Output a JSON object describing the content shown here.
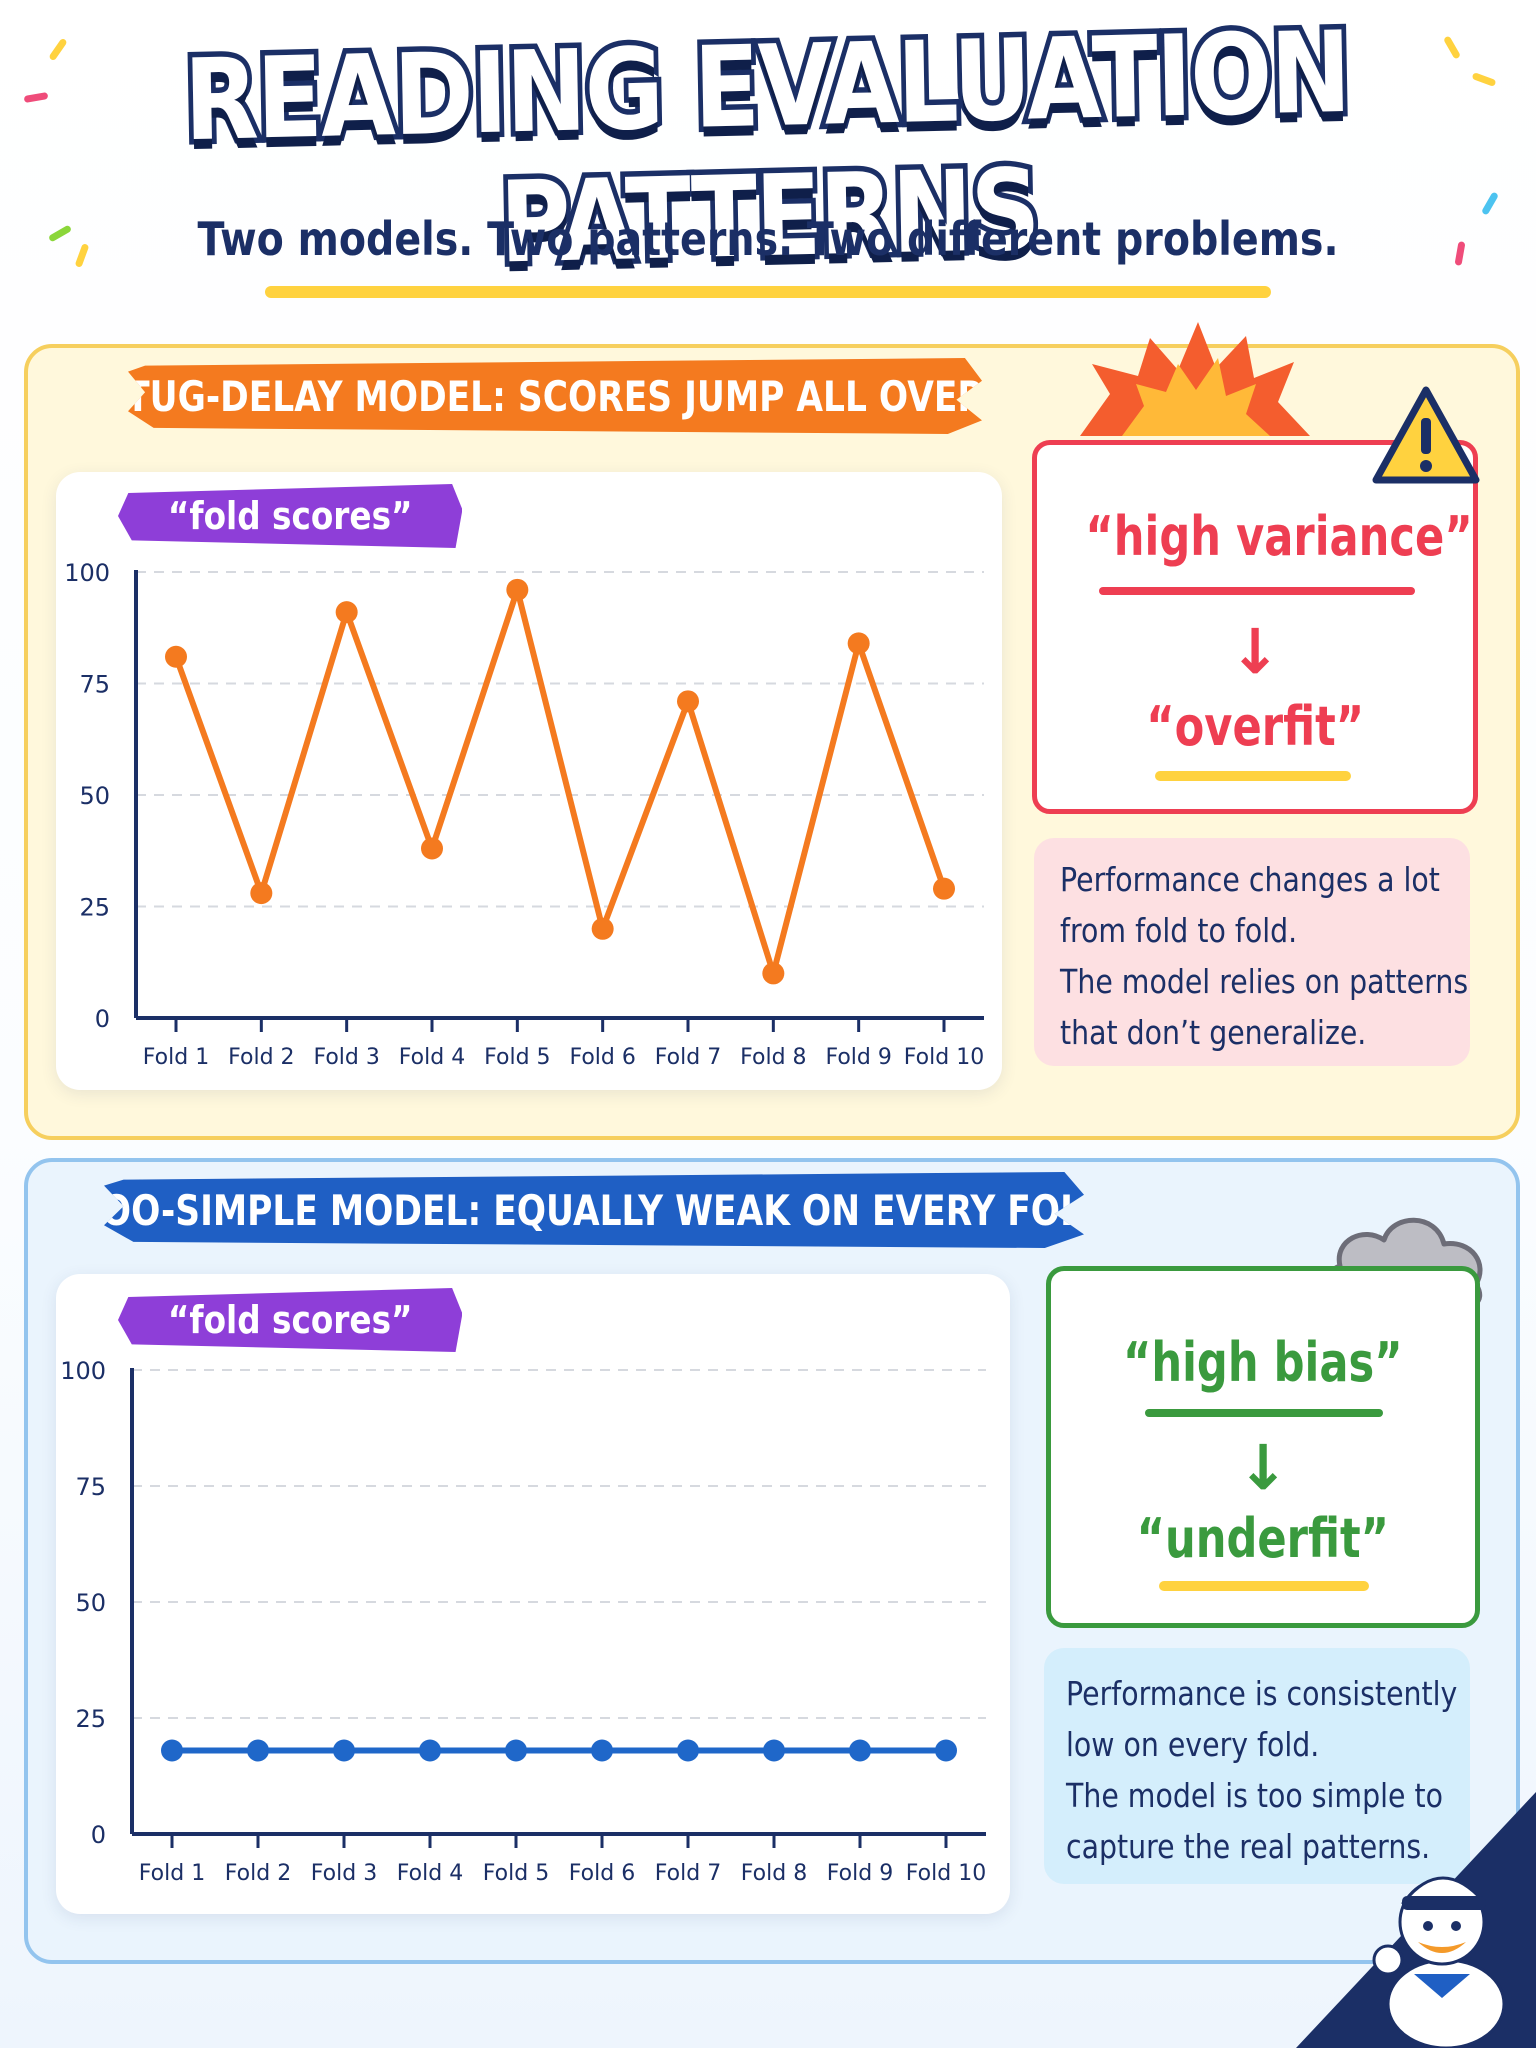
{
  "header": {
    "title": "READING EVALUATION PATTERNS",
    "subtitle": "Two models. Two patterns. Two different problems."
  },
  "top_panel": {
    "banner": "TUG-DELAY MODEL: SCORES JUMP ALL OVER",
    "chip": "“fold scores”",
    "label_top": "“high variance”",
    "label_bottom": "“overfit”",
    "arrow": "↓",
    "description": [
      "Performance changes a lot",
      "from fold to fold.",
      "The model relies on patterns",
      "that don’t generalize."
    ]
  },
  "bottom_panel": {
    "banner": "TOO-SIMPLE MODEL: EQUALLY WEAK ON EVERY FOLD",
    "chip": "“fold scores”",
    "label_top": "“high bias”",
    "label_bottom": "“underfit”",
    "arrow": "↓",
    "description": [
      "Performance is consistently",
      "low on every fold.",
      "The model is too simple to",
      "capture the real patterns."
    ]
  },
  "icons": [
    "burst-icon",
    "warning-icon",
    "cloud-icon",
    "sailor-duck-mascot"
  ],
  "colors": {
    "orange": "#f47a1f",
    "blue": "#1f5fc4",
    "purple": "#8e3ed8",
    "red": "#ee3e52",
    "green": "#3a9a3e",
    "navy": "#1b2f66",
    "yellow": "#ffd23f"
  },
  "chart_data": [
    {
      "type": "line",
      "categories": [
        "Fold 1",
        "Fold 2",
        "Fold 3",
        "Fold 4",
        "Fold 5",
        "Fold 6",
        "Fold 7",
        "Fold 8",
        "Fold 9",
        "Fold 10"
      ],
      "values": [
        81,
        28,
        91,
        38,
        96,
        20,
        71,
        10,
        84,
        29
      ],
      "yticks": [
        "0",
        "25",
        "50",
        "75",
        "100"
      ],
      "ylim": [
        0,
        100
      ],
      "grid": true,
      "color": "#f47a1f"
    },
    {
      "type": "line",
      "categories": [
        "Fold 1",
        "Fold 2",
        "Fold 3",
        "Fold 4",
        "Fold 5",
        "Fold 6",
        "Fold 7",
        "Fold 8",
        "Fold 9",
        "Fold 10"
      ],
      "values": [
        18,
        18,
        18,
        18,
        18,
        18,
        18,
        18,
        18,
        18
      ],
      "yticks": [
        "0",
        "25",
        "50",
        "75",
        "100"
      ],
      "ylim": [
        0,
        100
      ],
      "grid": true,
      "color": "#1f67c9"
    }
  ]
}
